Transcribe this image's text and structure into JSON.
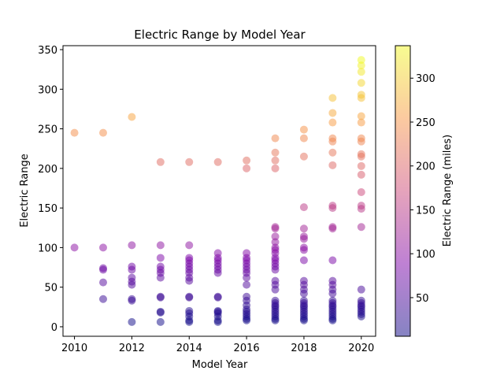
{
  "chart_data": {
    "type": "scatter",
    "title": "Electric Range by Model Year",
    "xlabel": "Model Year",
    "ylabel": "Electric Range",
    "xlim": [
      2009.6,
      2020.5
    ],
    "ylim": [
      -12,
      355
    ],
    "xticks": [
      2010,
      2012,
      2014,
      2016,
      2018,
      2020
    ],
    "yticks": [
      0,
      50,
      100,
      150,
      200,
      250,
      300,
      350
    ],
    "grid": false,
    "colormap": "plasma",
    "alpha": 0.5,
    "colorbar": {
      "label": "Electric Range (miles)",
      "range": [
        6,
        337
      ],
      "ticks": [
        50,
        100,
        150,
        200,
        250,
        300
      ]
    },
    "points": {
      "2010": [
        100,
        245
      ],
      "2011": [
        35,
        56,
        72,
        74,
        100,
        245
      ],
      "2012": [
        6,
        33,
        35,
        53,
        57,
        62,
        72,
        76,
        103,
        265
      ],
      "2013": [
        6,
        18,
        19,
        37,
        38,
        62,
        68,
        72,
        76,
        87,
        103,
        208
      ],
      "2014": [
        6,
        8,
        13,
        17,
        20,
        37,
        38,
        58,
        62,
        68,
        72,
        76,
        80,
        84,
        87,
        103,
        208
      ],
      "2015": [
        6,
        8,
        13,
        17,
        19,
        20,
        37,
        38,
        68,
        72,
        76,
        80,
        84,
        87,
        93,
        208
      ],
      "2016": [
        8,
        10,
        13,
        16,
        19,
        22,
        27,
        33,
        38,
        53,
        62,
        68,
        72,
        76,
        80,
        84,
        87,
        93,
        200,
        210
      ],
      "2017": [
        8,
        10,
        13,
        16,
        19,
        22,
        25,
        27,
        30,
        33,
        47,
        53,
        58,
        72,
        76,
        80,
        84,
        87,
        93,
        97,
        100,
        107,
        114,
        124,
        126,
        200,
        210,
        220,
        238
      ],
      "2018": [
        8,
        10,
        13,
        16,
        19,
        22,
        25,
        27,
        30,
        33,
        42,
        47,
        53,
        58,
        84,
        97,
        100,
        111,
        114,
        124,
        151,
        215,
        238,
        249
      ],
      "2019": [
        8,
        10,
        13,
        16,
        19,
        22,
        25,
        27,
        30,
        33,
        42,
        47,
        53,
        58,
        84,
        124,
        126,
        150,
        153,
        204,
        220,
        234,
        238,
        258,
        270,
        289
      ],
      "2020": [
        13,
        16,
        19,
        22,
        25,
        27,
        30,
        33,
        47,
        126,
        149,
        153,
        170,
        192,
        203,
        215,
        218,
        234,
        238,
        258,
        266,
        289,
        293,
        308,
        322,
        330,
        337
      ]
    }
  }
}
